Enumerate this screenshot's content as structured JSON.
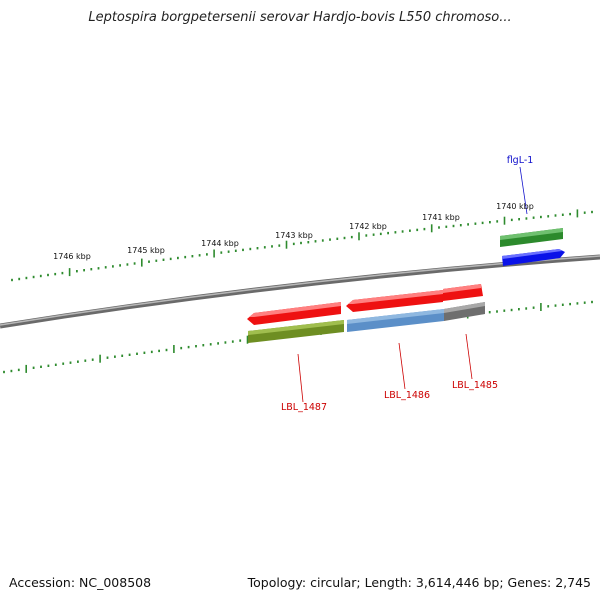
{
  "title": "Leptospira borgpetersenii serovar Hardjo-bovis L550 chromoso...",
  "footer": {
    "accession": "Accession: NC_008508",
    "info": "Topology: circular; Length: 3,614,446 bp; Genes: 2,745"
  },
  "colors": {
    "backbone": "#8a8a8a",
    "ticks": "#2e8b2e",
    "red": "#ee1111",
    "olive": "#6e8e22",
    "steel": "#5b8fc8",
    "gray": "#6e6e6e",
    "green": "#2c8a2c",
    "blue": "#0a12e8",
    "label_red": "#cc0000",
    "label_blue": "#1010cc"
  },
  "ticks": [
    {
      "label": "1740 kbp"
    },
    {
      "label": "1741 kbp"
    },
    {
      "label": "1742 kbp"
    },
    {
      "label": "1743 kbp"
    },
    {
      "label": "1744 kbp"
    },
    {
      "label": "1745 kbp"
    },
    {
      "label": "1746 kbp"
    }
  ],
  "genes": [
    {
      "label": "flgL-1"
    },
    {
      "label": "LBL_1487"
    },
    {
      "label": "LBL_1486"
    },
    {
      "label": "LBL_1485"
    }
  ]
}
